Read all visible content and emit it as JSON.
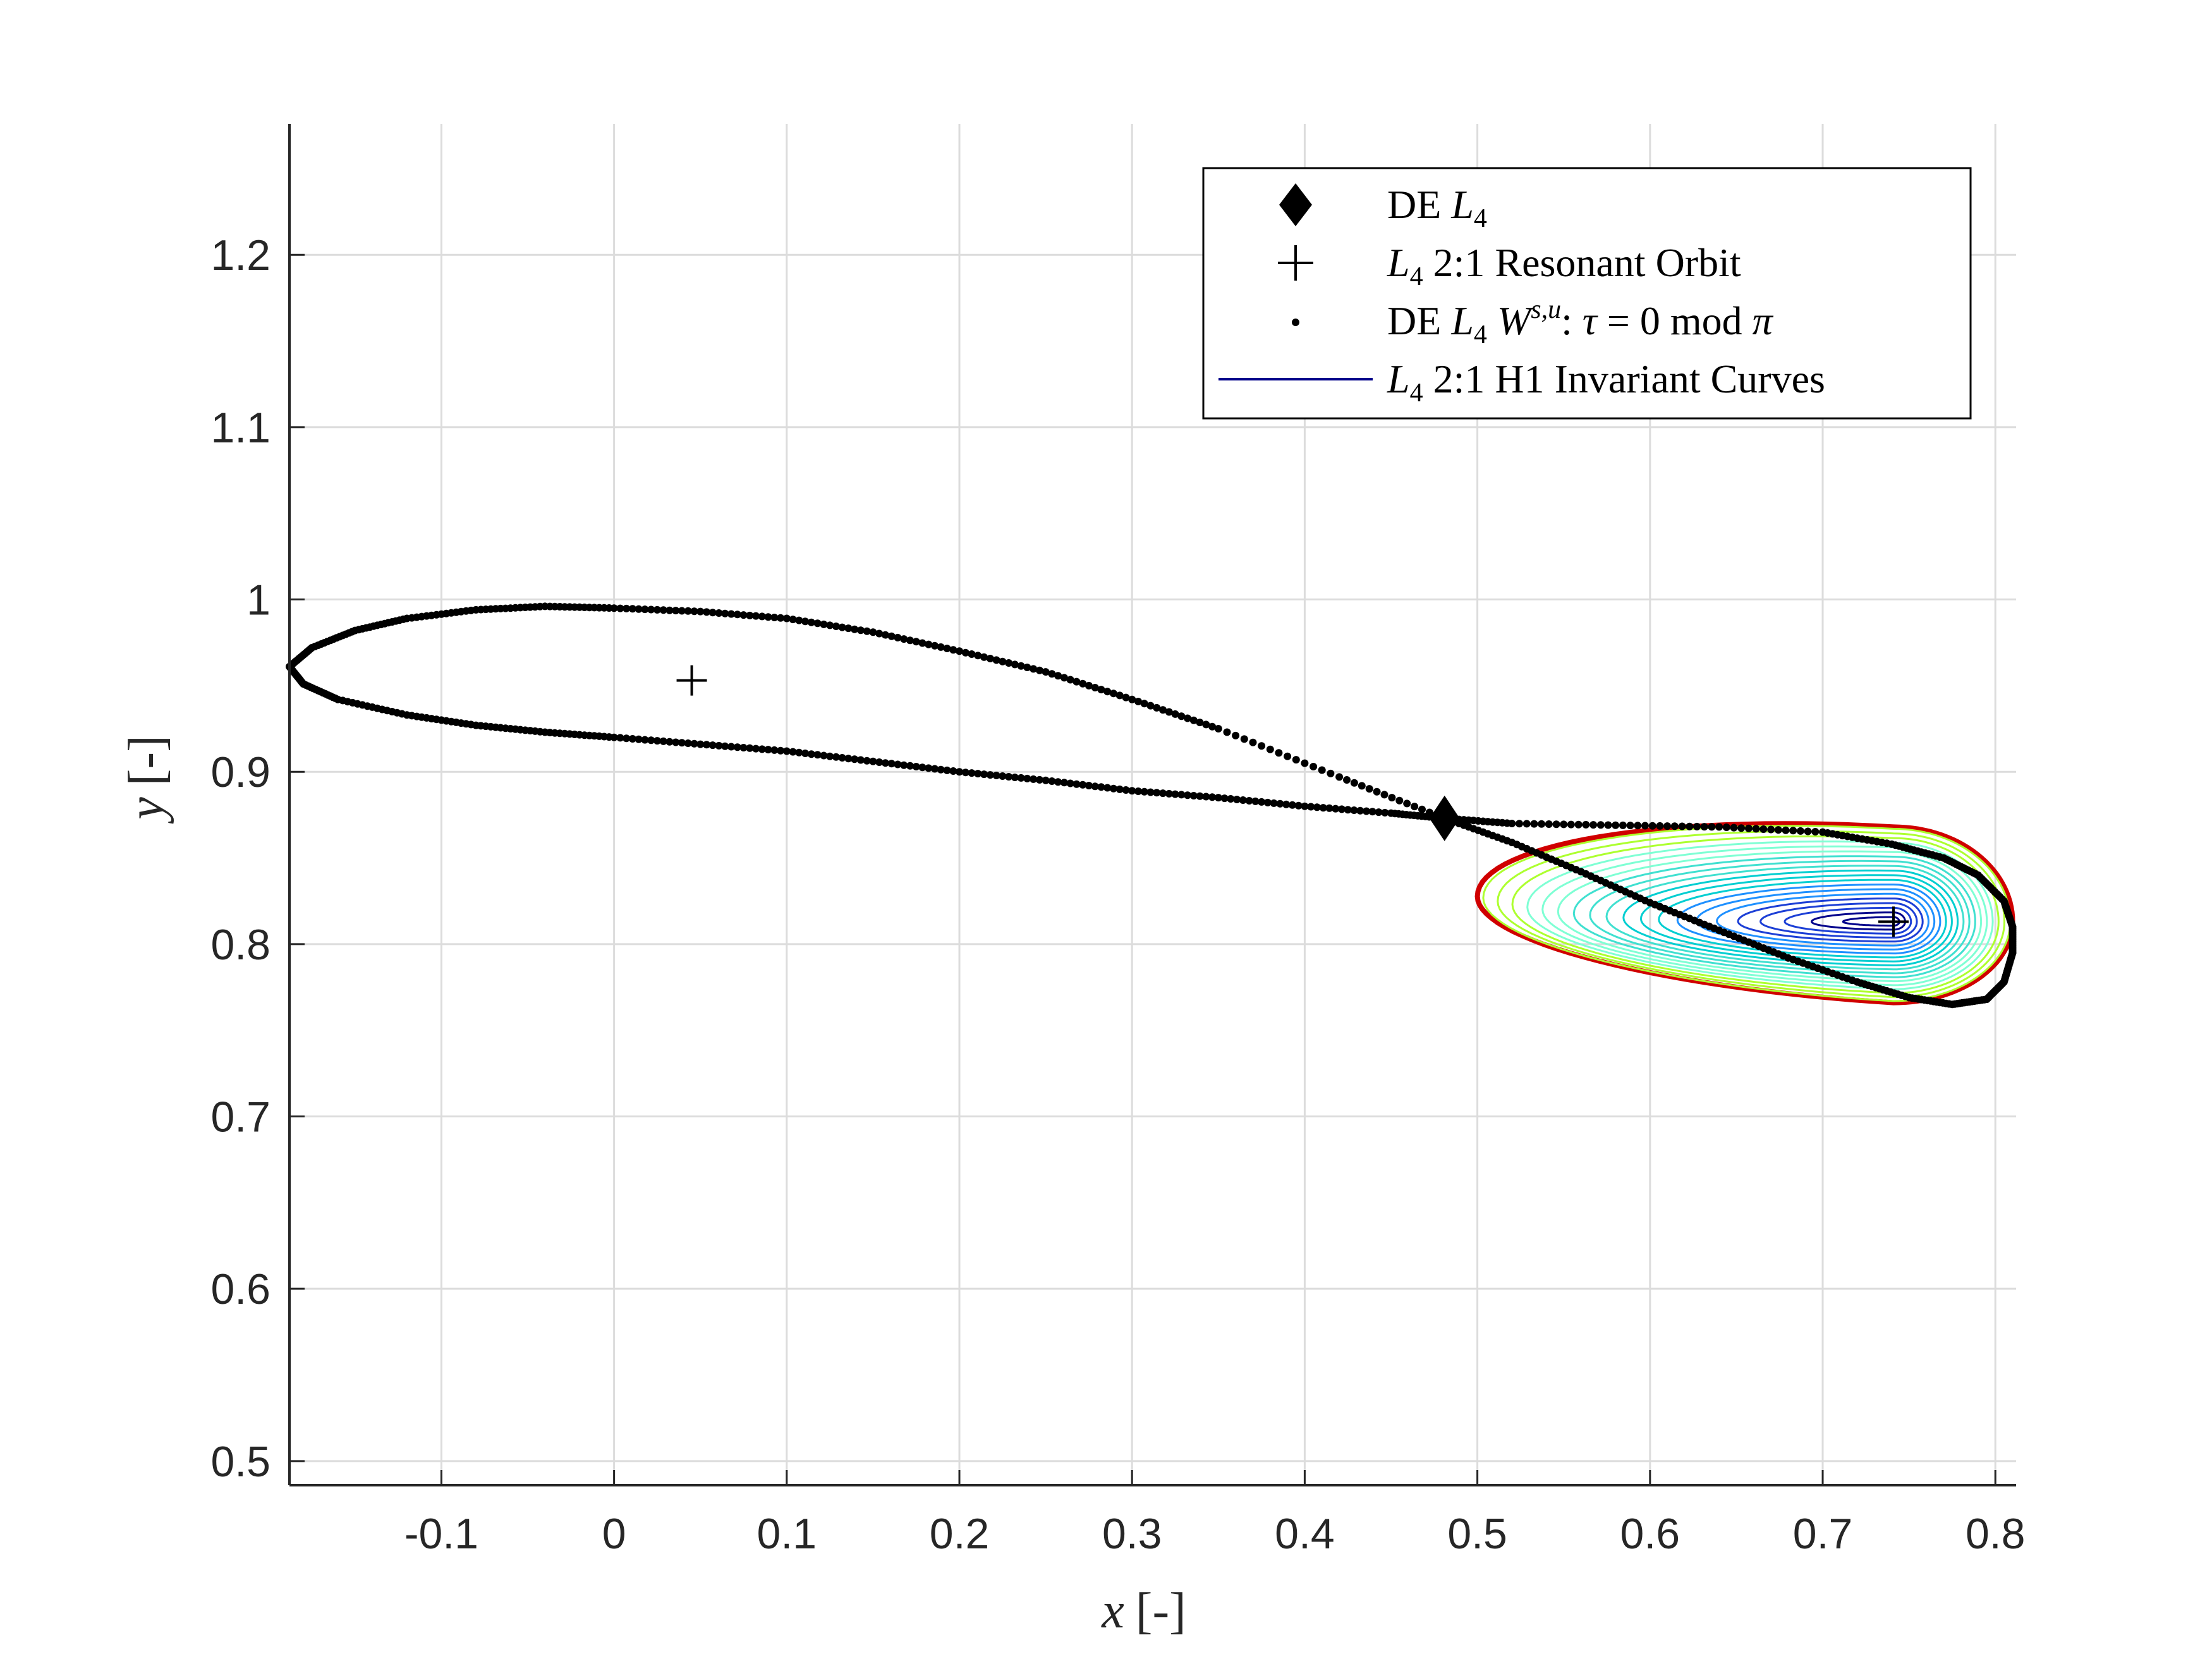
{
  "chart_data": {
    "type": "scatter",
    "title": "",
    "xlabel": {
      "var": "x",
      "unit": "[-]"
    },
    "ylabel": {
      "var": "y",
      "unit": "[-]"
    },
    "xlim": [
      -0.188,
      0.812
    ],
    "ylim": [
      0.486,
      1.276
    ],
    "xticks": [
      -0.1,
      0,
      0.1,
      0.2,
      0.3,
      0.4,
      0.5,
      0.6,
      0.7,
      0.8
    ],
    "xtick_labels": [
      "-0.1",
      "0",
      "0.1",
      "0.2",
      "0.3",
      "0.4",
      "0.5",
      "0.6",
      "0.7",
      "0.8"
    ],
    "yticks": [
      0.5,
      0.6,
      0.7,
      0.8,
      0.9,
      1.0,
      1.1,
      1.2
    ],
    "ytick_labels": [
      "0.5",
      "0.6",
      "0.7",
      "0.8",
      "0.9",
      "1",
      "1.1",
      "1.2"
    ],
    "grid": true,
    "legend_position": "top-right",
    "legend": [
      {
        "marker": "diamond",
        "text": "DE L4"
      },
      {
        "marker": "plus",
        "text": "L4 2:1 Resonant Orbit"
      },
      {
        "marker": "dot",
        "text": "DE L4 W^{s,u}: τ = 0 mod π"
      },
      {
        "marker": "line",
        "text": "L4 2:1 H1 Invariant Curves"
      }
    ],
    "de_L4": {
      "x": 0.481,
      "y": 0.873
    },
    "resonant_orbit": [
      {
        "x": 0.045,
        "y": 0.953
      },
      {
        "x": 0.741,
        "y": 0.813
      }
    ],
    "manifold_left_upper": [
      [
        0.481,
        0.873
      ],
      [
        0.42,
        0.897
      ],
      [
        0.35,
        0.925
      ],
      [
        0.3,
        0.942
      ],
      [
        0.25,
        0.958
      ],
      [
        0.2,
        0.97
      ],
      [
        0.15,
        0.981
      ],
      [
        0.1,
        0.989
      ],
      [
        0.05,
        0.993
      ],
      [
        0.0,
        0.995
      ],
      [
        -0.04,
        0.996
      ],
      [
        -0.08,
        0.994
      ],
      [
        -0.12,
        0.989
      ],
      [
        -0.15,
        0.982
      ],
      [
        -0.175,
        0.972
      ],
      [
        -0.188,
        0.961
      ]
    ],
    "manifold_left_lower": [
      [
        -0.188,
        0.961
      ],
      [
        -0.18,
        0.951
      ],
      [
        -0.16,
        0.942
      ],
      [
        -0.12,
        0.933
      ],
      [
        -0.08,
        0.927
      ],
      [
        -0.04,
        0.923
      ],
      [
        0.0,
        0.92
      ],
      [
        0.05,
        0.916
      ],
      [
        0.1,
        0.912
      ],
      [
        0.15,
        0.906
      ],
      [
        0.2,
        0.9
      ],
      [
        0.25,
        0.895
      ],
      [
        0.3,
        0.889
      ],
      [
        0.35,
        0.885
      ],
      [
        0.4,
        0.88
      ],
      [
        0.45,
        0.876
      ],
      [
        0.481,
        0.873
      ]
    ],
    "manifold_right_upper": [
      [
        0.481,
        0.873
      ],
      [
        0.52,
        0.87
      ],
      [
        0.58,
        0.869
      ],
      [
        0.64,
        0.868
      ],
      [
        0.7,
        0.865
      ],
      [
        0.74,
        0.858
      ],
      [
        0.77,
        0.85
      ],
      [
        0.79,
        0.84
      ],
      [
        0.805,
        0.825
      ],
      [
        0.81,
        0.81
      ],
      [
        0.81,
        0.795
      ]
    ],
    "manifold_right_lower": [
      [
        0.481,
        0.873
      ],
      [
        0.52,
        0.859
      ],
      [
        0.56,
        0.842
      ],
      [
        0.6,
        0.824
      ],
      [
        0.64,
        0.808
      ],
      [
        0.68,
        0.792
      ],
      [
        0.72,
        0.778
      ],
      [
        0.75,
        0.769
      ],
      [
        0.775,
        0.765
      ],
      [
        0.795,
        0.768
      ],
      [
        0.805,
        0.778
      ],
      [
        0.81,
        0.795
      ]
    ],
    "invariant_curves": {
      "center": {
        "x": 0.741,
        "y": 0.813
      },
      "count": 20,
      "colormap": [
        "#00008b",
        "#1c3fd6",
        "#1e90ff",
        "#00ced1",
        "#40e0d0",
        "#7fffd4",
        "#adff2f"
      ]
    },
    "colors": {
      "manifold": "#000000",
      "separatrix_edge": "#d00000",
      "grid": "#dcdcdc",
      "legend_line": "#00008b"
    }
  }
}
